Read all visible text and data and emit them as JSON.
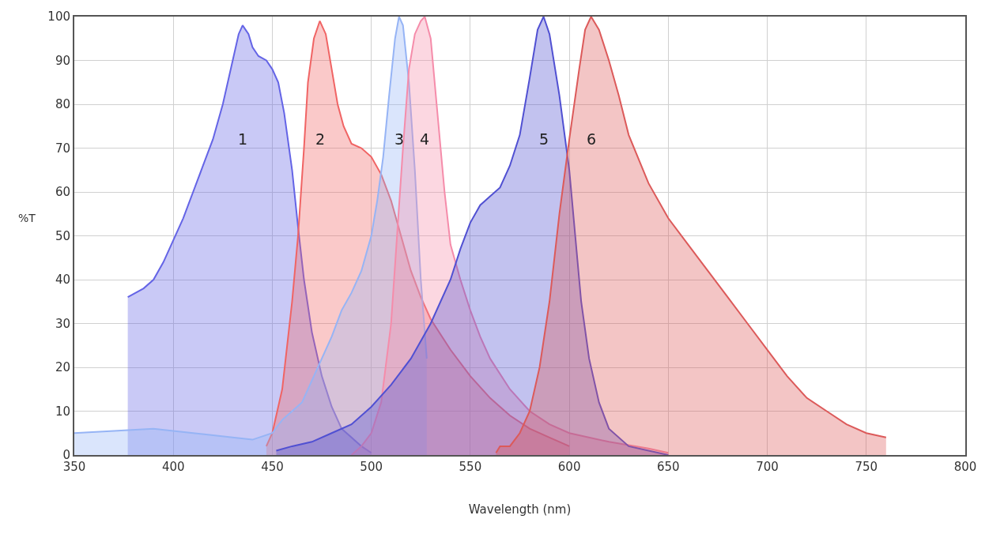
{
  "chart_data": {
    "type": "area",
    "xlabel": "Wavelength (nm)",
    "ylabel": "%T",
    "xlim": [
      350,
      800
    ],
    "xticks": [
      350,
      400,
      450,
      500,
      550,
      600,
      650,
      700,
      750,
      800
    ],
    "ylim": [
      0,
      100
    ],
    "yticks": [
      0,
      10,
      20,
      30,
      40,
      50,
      60,
      70,
      80,
      90,
      100
    ],
    "grid": true,
    "marker": "none",
    "line_style": "solid",
    "series": [
      {
        "name": "1",
        "color": "#6464e6",
        "x": [
          377,
          385,
          390,
          395,
          400,
          405,
          410,
          415,
          420,
          425,
          430,
          433,
          435,
          438,
          440,
          443,
          447,
          450,
          453,
          456,
          460,
          463,
          466,
          470,
          475,
          480,
          485,
          490,
          495,
          500
        ],
        "values": [
          36,
          38,
          40,
          44,
          49,
          54,
          60,
          66,
          72,
          80,
          90,
          96,
          98,
          96,
          93,
          91,
          90,
          88,
          85,
          78,
          65,
          52,
          40,
          28,
          18,
          11,
          6,
          4,
          2,
          0.5
        ]
      },
      {
        "name": "2",
        "color": "#f06464",
        "x": [
          447,
          450,
          455,
          460,
          463,
          466,
          468,
          471,
          474,
          477,
          480,
          483,
          486,
          490,
          495,
          500,
          505,
          510,
          515,
          520,
          525,
          530,
          540,
          550,
          560,
          570,
          580,
          590,
          600
        ],
        "values": [
          2,
          5,
          15,
          35,
          50,
          70,
          85,
          95,
          99,
          96,
          88,
          80,
          75,
          71,
          70,
          68,
          64,
          58,
          50,
          42,
          36,
          31,
          24,
          18,
          13,
          9,
          6,
          4,
          2
        ]
      },
      {
        "name": "3",
        "color": "#96b4f5",
        "x": [
          350,
          370,
          390,
          410,
          430,
          440,
          450,
          455,
          460,
          465,
          470,
          475,
          480,
          485,
          490,
          495,
          500,
          503,
          506,
          509,
          512,
          514,
          516,
          519,
          522,
          525,
          528
        ],
        "values": [
          5,
          5.5,
          6,
          5,
          4,
          3.5,
          5,
          8,
          10,
          12,
          17,
          22,
          27,
          33,
          37,
          42,
          50,
          58,
          68,
          82,
          95,
          100,
          98,
          85,
          65,
          40,
          22
        ]
      },
      {
        "name": "4",
        "color": "#f58caa",
        "x": [
          490,
          495,
          500,
          505,
          510,
          513,
          516,
          519,
          522,
          525,
          527,
          530,
          533,
          537,
          540,
          545,
          550,
          555,
          560,
          570,
          580,
          590,
          600,
          620,
          640,
          650
        ],
        "values": [
          0,
          2,
          5,
          12,
          30,
          50,
          70,
          88,
          96,
          99,
          100,
          95,
          80,
          60,
          48,
          40,
          33,
          27,
          22,
          15,
          10,
          7,
          5,
          3,
          1.5,
          0.5
        ]
      },
      {
        "name": "5",
        "color": "#5050d2",
        "x": [
          452,
          460,
          470,
          480,
          490,
          500,
          510,
          520,
          530,
          540,
          545,
          550,
          555,
          560,
          565,
          570,
          575,
          580,
          584,
          587,
          590,
          595,
          600,
          603,
          606,
          610,
          615,
          620,
          630,
          640,
          650
        ],
        "values": [
          1,
          2,
          3,
          5,
          7,
          11,
          16,
          22,
          30,
          40,
          47,
          53,
          57,
          59,
          61,
          66,
          73,
          86,
          97,
          100,
          96,
          82,
          65,
          50,
          35,
          22,
          12,
          6,
          2,
          1,
          0
        ]
      },
      {
        "name": "6",
        "color": "#dc5a5a",
        "x": [
          563,
          565,
          570,
          575,
          580,
          585,
          590,
          595,
          600,
          605,
          608,
          611,
          615,
          620,
          625,
          630,
          640,
          650,
          660,
          670,
          680,
          690,
          700,
          710,
          720,
          730,
          740,
          750,
          760
        ],
        "values": [
          0.5,
          2,
          2,
          5,
          10,
          20,
          35,
          55,
          72,
          88,
          97,
          100,
          97,
          90,
          82,
          73,
          62,
          54,
          48,
          42,
          36,
          30,
          24,
          18,
          13,
          10,
          7,
          5,
          4
        ]
      }
    ]
  }
}
